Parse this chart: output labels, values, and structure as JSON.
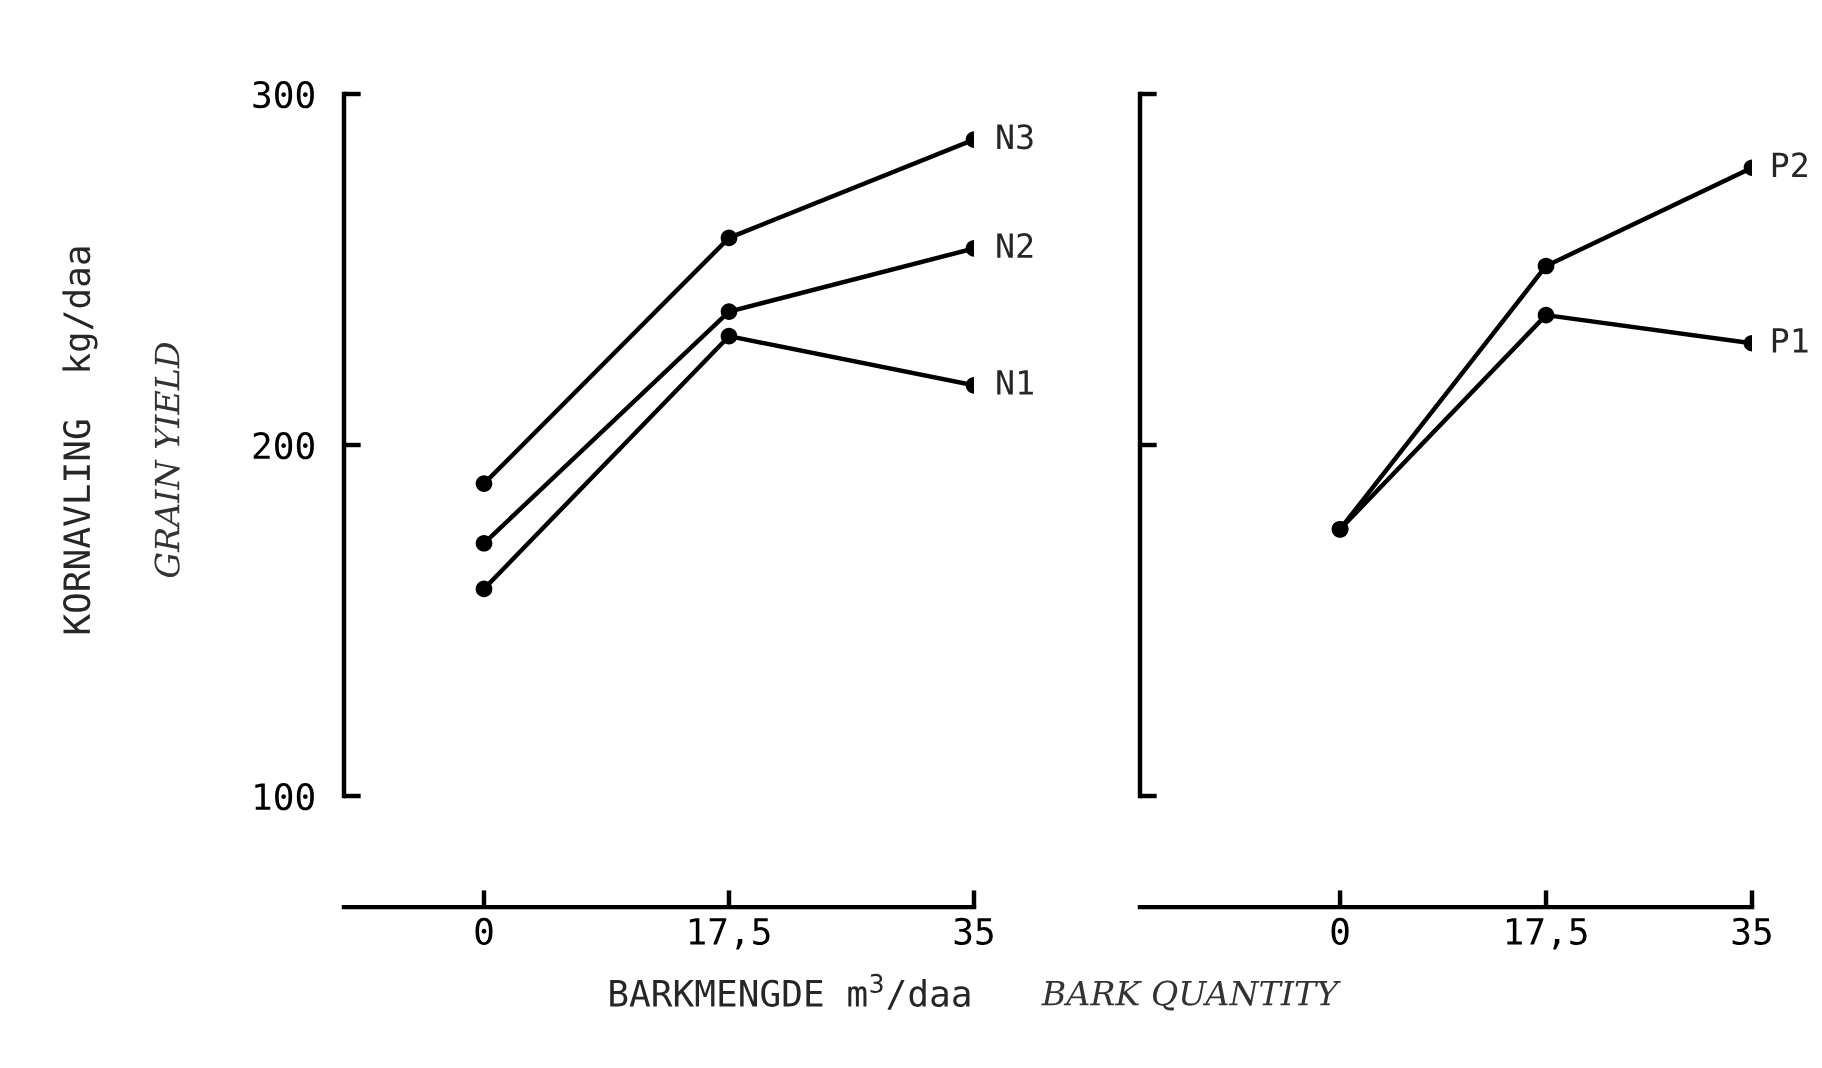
{
  "chart_data": [
    {
      "type": "line",
      "ylabel": "KORNAVLING  kg/daa",
      "xlabel": "BARKMENGDE m$^{3}$/daa",
      "annotations": [
        "GRAIN YIELD",
        "BARK QUANTITY"
      ],
      "x": [
        0,
        17.5,
        35
      ],
      "xlim": [
        -10,
        35
      ],
      "xticks": [
        0,
        {
          "value": 17.5,
          "label": "17,5"
        },
        35
      ],
      "ylim": [
        100,
        300
      ],
      "yticks": [
        100,
        200,
        300
      ],
      "marker": "circle",
      "line_style": "solid",
      "grid": false,
      "legend": false,
      "series": [
        {
          "name": "N3",
          "color": "#000000",
          "values": [
            189,
            259,
            287
          ]
        },
        {
          "name": "N2",
          "color": "#000000",
          "values": [
            172,
            238,
            256
          ]
        },
        {
          "name": "N1",
          "color": "#000000",
          "values": [
            159,
            231,
            217
          ]
        }
      ]
    },
    {
      "type": "line",
      "x": [
        0,
        17.5,
        35
      ],
      "xlim": [
        -17,
        35
      ],
      "xticks": [
        0,
        {
          "value": 17.5,
          "label": "17,5"
        },
        35
      ],
      "ylim": [
        100,
        300
      ],
      "yticks": [
        100,
        200,
        300
      ],
      "tick_labels": "x",
      "marker": "circle",
      "line_style": "solid",
      "grid": false,
      "legend": false,
      "series": [
        {
          "name": "P2",
          "color": "#000000",
          "values": [
            176,
            251,
            279
          ]
        },
        {
          "name": "P1",
          "color": "#000000",
          "values": [
            176,
            237,
            229
          ]
        }
      ]
    }
  ]
}
